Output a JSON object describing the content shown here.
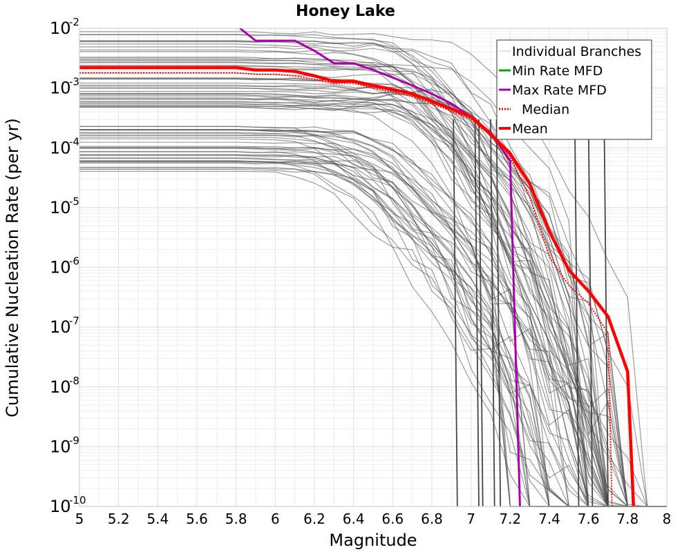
{
  "chart_data": {
    "type": "line",
    "title": "Honey Lake",
    "xlabel": "Magnitude",
    "ylabel": "Cumulative Nucleation Rate (per yr)",
    "xlim": [
      5,
      8
    ],
    "ylim": [
      1e-10,
      0.01
    ],
    "yscale": "log",
    "grid": true,
    "legend_position": "top-right",
    "x_ticks": [
      "5",
      "5.2",
      "5.4",
      "5.6",
      "5.8",
      "6",
      "6.2",
      "6.4",
      "6.6",
      "6.8",
      "7",
      "7.2",
      "7.4",
      "7.6",
      "7.8",
      "8"
    ],
    "y_ticks": [
      {
        "base": "10",
        "exp": "-2",
        "value": 0.01
      },
      {
        "base": "10",
        "exp": "-3",
        "value": 0.001
      },
      {
        "base": "10",
        "exp": "-4",
        "value": 0.0001
      },
      {
        "base": "10",
        "exp": "-5",
        "value": 1e-05
      },
      {
        "base": "10",
        "exp": "-6",
        "value": 1e-06
      },
      {
        "base": "10",
        "exp": "-7",
        "value": 1e-07
      },
      {
        "base": "10",
        "exp": "-8",
        "value": 1e-08
      },
      {
        "base": "10",
        "exp": "-9",
        "value": 1e-09
      },
      {
        "base": "10",
        "exp": "-10",
        "value": 1e-10
      }
    ],
    "legend": [
      {
        "label": "Individual Branches",
        "color": "#c0c0c0",
        "style": "solid-thin"
      },
      {
        "label": "Min Rate MFD",
        "color": "#00aa00",
        "style": "solid"
      },
      {
        "label": "Max Rate MFD",
        "color": "#aa00aa",
        "style": "solid"
      },
      {
        "label": "Median",
        "color": "#ff0000",
        "style": "dotted"
      },
      {
        "label": "Mean",
        "color": "#ff0000",
        "style": "solid-thick"
      }
    ],
    "series": [
      {
        "name": "Max Rate MFD",
        "color": "#aa00aa",
        "x": [
          5.82,
          5.9,
          6.1,
          6.2,
          6.3,
          6.4,
          6.5,
          6.6,
          6.7,
          6.8,
          6.9,
          7.0,
          7.1,
          7.2,
          7.25
        ],
        "y": [
          0.01,
          0.0062,
          0.0062,
          0.0042,
          0.0026,
          0.0026,
          0.002,
          0.0015,
          0.0011,
          0.0008,
          0.00055,
          0.00033,
          0.00018,
          6e-05,
          1e-10
        ]
      },
      {
        "name": "Mean",
        "color": "#ff0000",
        "x": [
          5.0,
          5.8,
          5.9,
          6.0,
          6.1,
          6.2,
          6.3,
          6.4,
          6.5,
          6.6,
          6.7,
          6.8,
          6.9,
          7.0,
          7.1,
          7.2,
          7.3,
          7.4,
          7.5,
          7.6,
          7.7,
          7.8,
          7.83
        ],
        "y": [
          0.0022,
          0.0022,
          0.002,
          0.002,
          0.0019,
          0.0016,
          0.0013,
          0.0013,
          0.0011,
          0.00095,
          0.0008,
          0.0006,
          0.00045,
          0.00033,
          0.00017,
          8e-05,
          2.5e-05,
          4e-06,
          9e-07,
          4e-07,
          1.5e-07,
          1.8e-08,
          1e-10
        ]
      },
      {
        "name": "Median",
        "color": "#ff0000",
        "x": [
          5.0,
          5.8,
          5.9,
          6.0,
          6.1,
          6.2,
          6.3,
          6.4,
          6.5,
          6.6,
          6.7,
          6.8,
          6.9,
          7.0,
          7.1,
          7.2,
          7.3,
          7.4,
          7.5,
          7.6,
          7.7,
          7.72
        ],
        "y": [
          0.0018,
          0.0018,
          0.0017,
          0.0017,
          0.0016,
          0.0014,
          0.0012,
          0.0012,
          0.001,
          0.00087,
          0.00072,
          0.00055,
          0.00041,
          0.0003,
          0.00016,
          7e-05,
          1.5e-05,
          1.5e-06,
          5e-07,
          2.5e-07,
          8e-08,
          1e-10
        ]
      }
    ]
  }
}
